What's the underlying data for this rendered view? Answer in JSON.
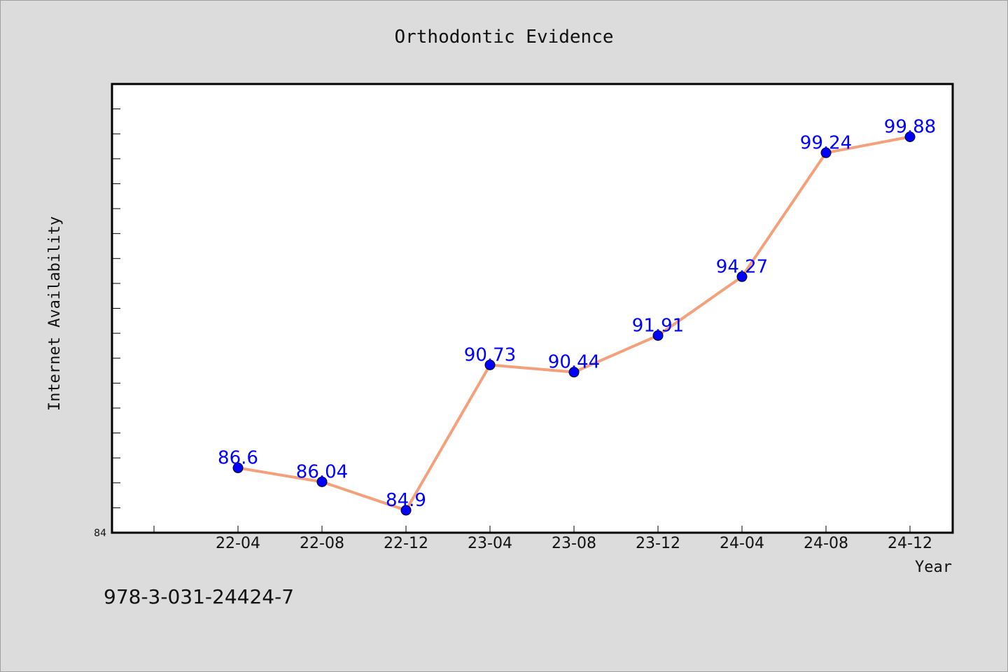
{
  "chart_data": {
    "type": "line",
    "title": "Orthodontic Evidence",
    "xlabel": "Year",
    "ylabel": "Internet Availability",
    "categories": [
      "22-04",
      "22-08",
      "22-12",
      "23-04",
      "23-08",
      "23-12",
      "24-04",
      "24-08",
      "24-12"
    ],
    "series": [
      {
        "values": [
          86.6,
          86.04,
          84.9,
          90.73,
          90.44,
          91.91,
          94.27,
          99.24,
          99.88
        ],
        "labels": [
          "86.6",
          "86.04",
          "84.9",
          "90.73",
          "90.44",
          "91.91",
          "94.27",
          "99.24",
          "99.88"
        ],
        "line_color": "#f4a07a",
        "marker_color": "#0000ff"
      }
    ],
    "ylim": [
      84,
      102
    ],
    "yticks_labeled": [
      "84"
    ],
    "grid": false,
    "legend": "none"
  },
  "footer": {
    "isbn": "978-3-031-24424-7"
  },
  "colors": {
    "background": "#dcdcdc",
    "plot_background": "#ffffff",
    "line": "#f4a07a",
    "marker": "#0000ff",
    "data_label": "#0000ff"
  }
}
